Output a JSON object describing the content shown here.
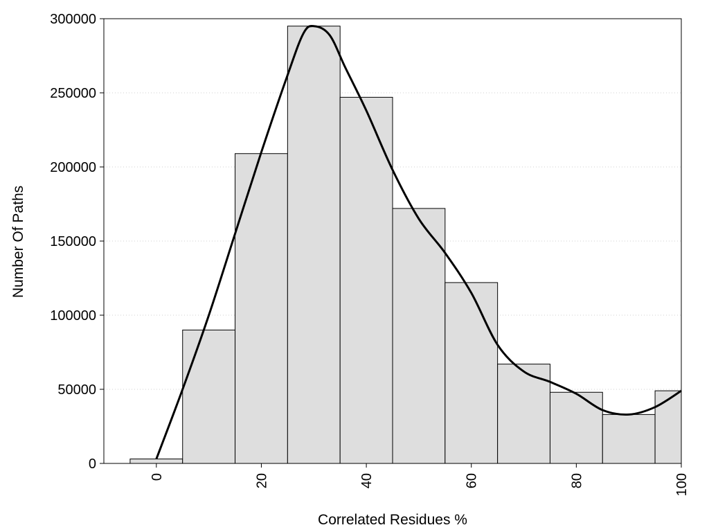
{
  "chart_data": {
    "type": "bar",
    "title": "",
    "xlabel": "Correlated Residues %",
    "ylabel": "Number Of Paths",
    "xlim": [
      -10,
      100
    ],
    "ylim": [
      0,
      300000
    ],
    "bin_width": 10,
    "x": [
      0,
      10,
      20,
      30,
      40,
      50,
      60,
      70,
      80,
      90,
      100
    ],
    "values": [
      3000,
      90000,
      209000,
      295000,
      247000,
      172000,
      122000,
      67000,
      48000,
      33000,
      49000
    ],
    "curve": {
      "x": [
        0,
        5,
        10,
        15,
        20,
        25,
        28,
        30,
        33,
        36,
        40,
        45,
        50,
        55,
        60,
        65,
        70,
        75,
        80,
        85,
        90,
        95,
        100
      ],
      "y": [
        3000,
        50000,
        100000,
        155000,
        210000,
        262000,
        290000,
        295000,
        289000,
        267000,
        238000,
        198000,
        165000,
        142000,
        115000,
        80000,
        62000,
        55000,
        47000,
        36000,
        33000,
        38000,
        49000
      ]
    },
    "x_ticks": [
      "0",
      "20",
      "40",
      "60",
      "80",
      "100"
    ],
    "y_ticks": [
      "0",
      "50000",
      "100000",
      "150000",
      "200000",
      "250000",
      "300000"
    ],
    "grid": "horizontal-dotted",
    "legend": "none",
    "colors": {
      "bar_fill": "#dedede",
      "bar_stroke": "#000000",
      "curve": "#000000",
      "grid": "#cfcfcf"
    }
  }
}
